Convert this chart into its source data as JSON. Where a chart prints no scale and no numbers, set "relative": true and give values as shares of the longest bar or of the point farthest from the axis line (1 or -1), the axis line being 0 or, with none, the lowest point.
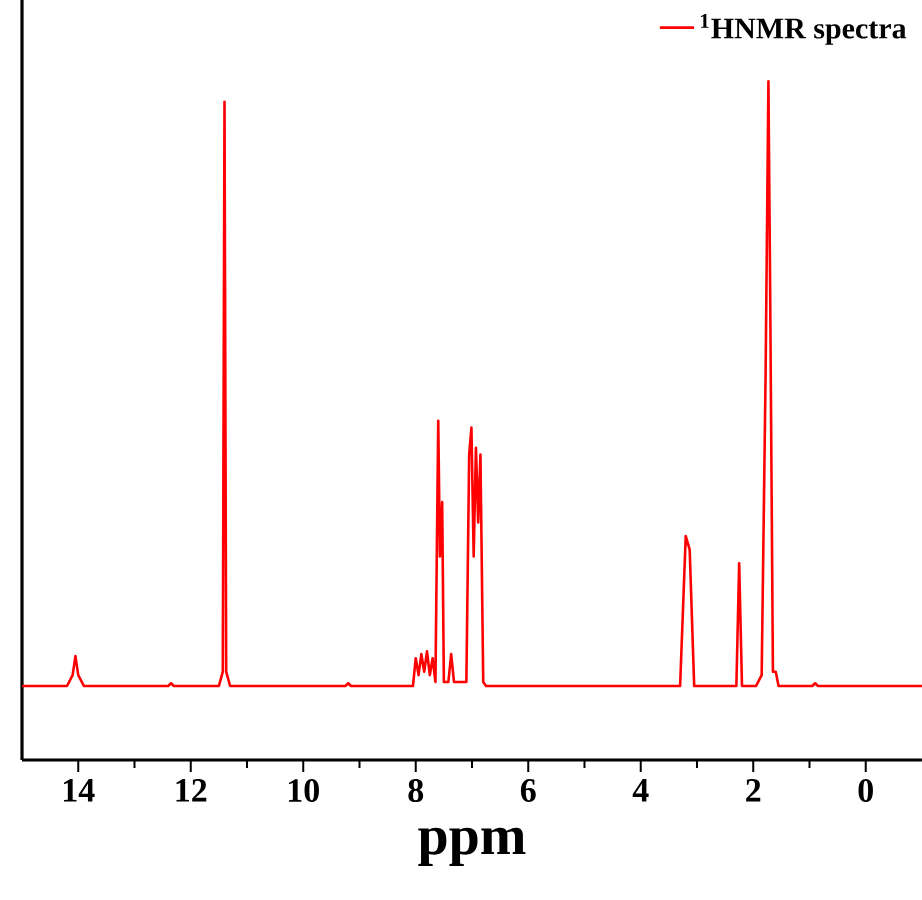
{
  "chart_data": {
    "type": "line",
    "xlabel": "ppm",
    "relative": true,
    "xlim": [
      15,
      -1
    ],
    "xticks": [
      14,
      12,
      10,
      8,
      6,
      4,
      2,
      0
    ],
    "legend": "top right",
    "grid": false,
    "marker": "none",
    "line_style": "solid",
    "series": [
      {
        "name": "$^{1}$HNMR spectra",
        "color": "#ff0000",
        "x": [
          15.0,
          14.2,
          14.1,
          14.05,
          14.0,
          13.9,
          12.4,
          12.35,
          12.3,
          11.5,
          11.43,
          11.4,
          11.37,
          11.3,
          9.25,
          9.2,
          9.15,
          8.05,
          8.0,
          7.95,
          7.9,
          7.85,
          7.8,
          7.75,
          7.7,
          7.65,
          7.6,
          7.57,
          7.53,
          7.5,
          7.42,
          7.37,
          7.32,
          7.1,
          7.05,
          7.01,
          6.97,
          6.93,
          6.89,
          6.85,
          6.8,
          6.75,
          3.3,
          3.2,
          3.13,
          3.05,
          2.3,
          2.25,
          2.2,
          1.95,
          1.85,
          1.78,
          1.73,
          1.7,
          1.65,
          1.6,
          1.55,
          0.95,
          0.9,
          0.85,
          -1.0
        ],
        "values": [
          0.109,
          0.109,
          0.125,
          0.153,
          0.125,
          0.109,
          0.109,
          0.113,
          0.109,
          0.109,
          0.13,
          0.97,
          0.13,
          0.109,
          0.109,
          0.113,
          0.109,
          0.109,
          0.15,
          0.125,
          0.156,
          0.13,
          0.16,
          0.125,
          0.15,
          0.115,
          0.5,
          0.3,
          0.38,
          0.115,
          0.115,
          0.156,
          0.115,
          0.115,
          0.45,
          0.49,
          0.3,
          0.46,
          0.35,
          0.45,
          0.115,
          0.109,
          0.109,
          0.33,
          0.31,
          0.109,
          0.109,
          0.29,
          0.109,
          0.109,
          0.125,
          0.57,
          1.0,
          0.7,
          0.13,
          0.13,
          0.109,
          0.109,
          0.113,
          0.109,
          0.109
        ]
      }
    ]
  }
}
